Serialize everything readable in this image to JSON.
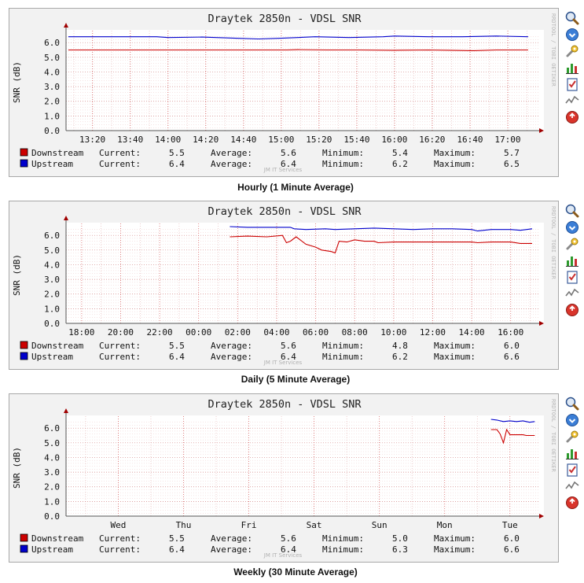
{
  "chart_data": [
    {
      "type": "line",
      "title": "Draytek 2850n - VDSL SNR",
      "ylabel": "SNR (dB)",
      "ylim": [
        0,
        6.6
      ],
      "yticks": [
        "0.0",
        "1.0",
        "2.0",
        "3.0",
        "4.0",
        "5.0",
        "6.0"
      ],
      "xlim": [
        13.1,
        17.25
      ],
      "x_ticks": [
        {
          "x": 13.333,
          "label": "13:20"
        },
        {
          "x": 13.667,
          "label": "13:40"
        },
        {
          "x": 14.0,
          "label": "14:00"
        },
        {
          "x": 14.333,
          "label": "14:20"
        },
        {
          "x": 14.667,
          "label": "14:40"
        },
        {
          "x": 15.0,
          "label": "15:00"
        },
        {
          "x": 15.333,
          "label": "15:20"
        },
        {
          "x": 15.667,
          "label": "15:40"
        },
        {
          "x": 16.0,
          "label": "16:00"
        },
        {
          "x": 16.333,
          "label": "16:20"
        },
        {
          "x": 16.667,
          "label": "16:40"
        },
        {
          "x": 17.0,
          "label": "17:00"
        }
      ],
      "vgrid_step": 0.1667,
      "series": [
        {
          "name": "Downstream",
          "color": "#cc0000",
          "x": [
            13.12,
            13.5,
            13.9,
            14.3,
            14.7,
            15.05,
            15.15,
            15.4,
            15.7,
            16.0,
            16.3,
            16.5,
            16.7,
            16.9,
            17.18
          ],
          "values": [
            5.5,
            5.5,
            5.5,
            5.5,
            5.5,
            5.5,
            5.52,
            5.5,
            5.5,
            5.48,
            5.5,
            5.48,
            5.45,
            5.5,
            5.5
          ]
        },
        {
          "name": "Upstream",
          "color": "#0000cc",
          "x": [
            13.12,
            13.5,
            13.9,
            14.0,
            14.3,
            14.6,
            14.8,
            15.0,
            15.3,
            15.6,
            15.9,
            16.0,
            16.3,
            16.6,
            16.9,
            17.18
          ],
          "values": [
            6.4,
            6.4,
            6.4,
            6.35,
            6.38,
            6.3,
            6.25,
            6.3,
            6.4,
            6.35,
            6.4,
            6.45,
            6.4,
            6.4,
            6.45,
            6.4
          ]
        }
      ],
      "legend": [
        {
          "name": "Downstream",
          "color": "#cc0000",
          "current": "5.5",
          "average": "5.6",
          "minimum": "5.4",
          "maximum": "5.7"
        },
        {
          "name": "Upstream",
          "color": "#0000cc",
          "current": "6.4",
          "average": "6.4",
          "minimum": "6.2",
          "maximum": "6.5"
        }
      ],
      "caption": "Hourly (1 Minute Average)"
    },
    {
      "type": "line",
      "title": "Draytek 2850n - VDSL SNR",
      "ylabel": "SNR (dB)",
      "ylim": [
        0,
        6.6
      ],
      "yticks": [
        "0.0",
        "1.0",
        "2.0",
        "3.0",
        "4.0",
        "5.0",
        "6.0"
      ],
      "xlim": [
        17.2,
        41.3
      ],
      "x_ticks": [
        {
          "x": 18,
          "label": "18:00"
        },
        {
          "x": 20,
          "label": "20:00"
        },
        {
          "x": 22,
          "label": "22:00"
        },
        {
          "x": 24,
          "label": "00:00"
        },
        {
          "x": 26,
          "label": "02:00"
        },
        {
          "x": 28,
          "label": "04:00"
        },
        {
          "x": 30,
          "label": "06:00"
        },
        {
          "x": 32,
          "label": "08:00"
        },
        {
          "x": 34,
          "label": "10:00"
        },
        {
          "x": 36,
          "label": "12:00"
        },
        {
          "x": 38,
          "label": "14:00"
        },
        {
          "x": 40,
          "label": "16:00"
        }
      ],
      "vgrid_step": 1,
      "series": [
        {
          "name": "Downstream",
          "color": "#cc0000",
          "x": [
            25.6,
            26.5,
            27.5,
            28.3,
            28.5,
            28.7,
            29.0,
            29.5,
            30.0,
            30.3,
            30.8,
            31.0,
            31.2,
            31.6,
            32.0,
            32.5,
            33.0,
            33.2,
            34.0,
            35.0,
            36.0,
            37.0,
            38.0,
            38.3,
            39.0,
            40.0,
            40.5,
            41.1
          ],
          "values": [
            5.9,
            5.95,
            5.9,
            6.0,
            5.5,
            5.6,
            5.9,
            5.4,
            5.2,
            5.0,
            4.9,
            4.8,
            5.6,
            5.55,
            5.7,
            5.6,
            5.6,
            5.5,
            5.55,
            5.55,
            5.55,
            5.55,
            5.55,
            5.5,
            5.55,
            5.55,
            5.45,
            5.45
          ]
        },
        {
          "name": "Upstream",
          "color": "#0000cc",
          "x": [
            25.6,
            26.5,
            27.5,
            28.7,
            28.9,
            29.5,
            30.5,
            31.0,
            32.0,
            33.0,
            34.0,
            35.0,
            36.0,
            37.0,
            38.0,
            38.3,
            39.0,
            40.0,
            40.5,
            41.1
          ],
          "values": [
            6.6,
            6.55,
            6.55,
            6.55,
            6.45,
            6.4,
            6.45,
            6.4,
            6.45,
            6.5,
            6.45,
            6.4,
            6.45,
            6.45,
            6.4,
            6.3,
            6.4,
            6.4,
            6.35,
            6.45
          ]
        }
      ],
      "legend": [
        {
          "name": "Downstream",
          "color": "#cc0000",
          "current": "5.5",
          "average": "5.6",
          "minimum": "4.8",
          "maximum": "6.0"
        },
        {
          "name": "Upstream",
          "color": "#0000cc",
          "current": "6.4",
          "average": "6.4",
          "minimum": "6.2",
          "maximum": "6.6"
        }
      ],
      "caption": "Daily (5 Minute Average)"
    },
    {
      "type": "line",
      "title": "Draytek 2850n - VDSL SNR",
      "ylabel": "SNR (dB)",
      "ylim": [
        0,
        6.6
      ],
      "yticks": [
        "0.0",
        "1.0",
        "2.0",
        "3.0",
        "4.0",
        "5.0",
        "6.0"
      ],
      "xlim": [
        -0.3,
        6.9
      ],
      "x_ticks": [
        {
          "x": 0.5,
          "label": "Wed"
        },
        {
          "x": 1.5,
          "label": "Thu"
        },
        {
          "x": 2.5,
          "label": "Fri"
        },
        {
          "x": 3.5,
          "label": "Sat"
        },
        {
          "x": 4.5,
          "label": "Sun"
        },
        {
          "x": 5.5,
          "label": "Mon"
        },
        {
          "x": 6.5,
          "label": "Tue"
        }
      ],
      "vgrid_step": 0.5,
      "series": [
        {
          "name": "Downstream",
          "color": "#cc0000",
          "x": [
            6.21,
            6.3,
            6.35,
            6.4,
            6.45,
            6.5,
            6.6,
            6.7,
            6.75,
            6.8,
            6.88
          ],
          "values": [
            5.9,
            5.9,
            5.6,
            5.0,
            5.9,
            5.55,
            5.55,
            5.55,
            5.5,
            5.5,
            5.5
          ]
        },
        {
          "name": "Upstream",
          "color": "#0000cc",
          "x": [
            6.21,
            6.3,
            6.4,
            6.5,
            6.6,
            6.7,
            6.8,
            6.88
          ],
          "values": [
            6.6,
            6.55,
            6.45,
            6.5,
            6.45,
            6.5,
            6.4,
            6.45
          ]
        }
      ],
      "legend": [
        {
          "name": "Downstream",
          "color": "#cc0000",
          "current": "5.5",
          "average": "5.6",
          "minimum": "5.0",
          "maximum": "6.0"
        },
        {
          "name": "Upstream",
          "color": "#0000cc",
          "current": "6.4",
          "average": "6.4",
          "minimum": "6.3",
          "maximum": "6.6"
        }
      ],
      "caption": "Weekly (30 Minute Average)"
    }
  ],
  "legend_labels": {
    "current": "Current:",
    "average": "Average:",
    "minimum": "Minimum:",
    "maximum": "Maximum:"
  },
  "watermark": "JM IT Services",
  "side_text": "RRDTOOL / TOBI OETIKER",
  "toolbar_icons": [
    "zoom-icon",
    "info-icon",
    "settings-icon",
    "graph-icon",
    "checklist-icon",
    "line-graph-icon",
    "close-icon"
  ]
}
